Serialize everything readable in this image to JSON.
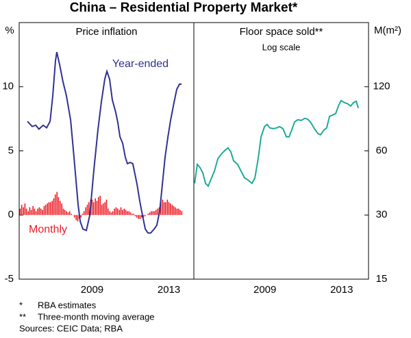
{
  "title": "China – Residential Property Market*",
  "notes": [
    {
      "marker": "*",
      "text": "RBA estimates"
    },
    {
      "marker": "**",
      "text": "Three-month moving average"
    }
  ],
  "sources": "Sources: CEIC Data; RBA",
  "chart_data": [
    {
      "type": "line",
      "title": "Price inflation",
      "ylabel": "%",
      "xlim": [
        2005.7,
        2014.8
      ],
      "xticks": [
        {
          "value": 2009.5,
          "label": "2009"
        },
        {
          "value": 2013.5,
          "label": "2013"
        }
      ],
      "ylim": [
        -5,
        15
      ],
      "yticks": [
        -5,
        0,
        5,
        10
      ],
      "series": [
        {
          "name": "Year-ended",
          "type": "line",
          "color": "#2e3192",
          "x": [
            2006.13,
            2006.38,
            2006.56,
            2006.73,
            2006.95,
            2007.13,
            2007.31,
            2007.45,
            2007.59,
            2007.66,
            2007.81,
            2007.98,
            2008.16,
            2008.38,
            2008.52,
            2008.66,
            2008.77,
            2008.88,
            2009.02,
            2009.2,
            2009.38,
            2009.59,
            2009.8,
            2009.98,
            2010.16,
            2010.27,
            2010.41,
            2010.55,
            2010.73,
            2010.84,
            2010.95,
            2011.09,
            2011.23,
            2011.34,
            2011.48,
            2011.62,
            2011.73,
            2011.84,
            2011.98,
            2012.12,
            2012.27,
            2012.41,
            2012.55,
            2012.73,
            2012.87,
            2013.02,
            2013.16,
            2013.3,
            2013.45,
            2013.59,
            2013.77,
            2013.91,
            2014.05,
            2014.16
          ],
          "values": [
            7.3,
            6.9,
            7.0,
            6.7,
            7.0,
            6.8,
            7.3,
            9.3,
            12.0,
            12.7,
            11.7,
            10.4,
            9.3,
            7.4,
            5.1,
            2.7,
            0.8,
            -0.5,
            -1.1,
            -1.2,
            0,
            3.5,
            6.6,
            8.8,
            10.6,
            11.2,
            10.6,
            9.0,
            8.0,
            7.2,
            6.1,
            5.6,
            4.5,
            4.0,
            4.1,
            4.0,
            3.2,
            2.4,
            1.1,
            0,
            -1.1,
            -1.4,
            -1.4,
            -1.1,
            -0.8,
            0.3,
            2.4,
            4.5,
            6.1,
            7.4,
            8.8,
            9.8,
            10.2,
            10.2
          ]
        },
        {
          "name": "Monthly",
          "type": "bar",
          "color": "#ed1c24",
          "x": [
            2005.75,
            2005.83,
            2005.92,
            2006.0,
            2006.08,
            2006.17,
            2006.25,
            2006.33,
            2006.42,
            2006.5,
            2006.58,
            2006.67,
            2006.75,
            2006.83,
            2006.92,
            2007.0,
            2007.08,
            2007.17,
            2007.25,
            2007.33,
            2007.42,
            2007.5,
            2007.58,
            2007.67,
            2007.75,
            2007.83,
            2007.92,
            2008.0,
            2008.08,
            2008.17,
            2008.25,
            2008.33,
            2008.42,
            2008.5,
            2008.58,
            2008.67,
            2008.75,
            2008.83,
            2008.92,
            2009.0,
            2009.08,
            2009.17,
            2009.25,
            2009.33,
            2009.42,
            2009.5,
            2009.58,
            2009.67,
            2009.75,
            2009.83,
            2009.92,
            2010.0,
            2010.08,
            2010.17,
            2010.25,
            2010.33,
            2010.42,
            2010.5,
            2010.58,
            2010.67,
            2010.75,
            2010.83,
            2010.92,
            2011.0,
            2011.08,
            2011.17,
            2011.25,
            2011.33,
            2011.42,
            2011.5,
            2011.58,
            2011.67,
            2011.75,
            2011.83,
            2011.92,
            2012.0,
            2012.08,
            2012.17,
            2012.25,
            2012.33,
            2012.42,
            2012.5,
            2012.58,
            2012.67,
            2012.75,
            2012.83,
            2012.92,
            2013.0,
            2013.08,
            2013.17,
            2013.25,
            2013.33,
            2013.42,
            2013.5,
            2013.58,
            2013.67,
            2013.75,
            2013.83,
            2013.92,
            2014.0,
            2014.08,
            2014.17
          ],
          "values": [
            0.5,
            0.8,
            0.6,
            0.9,
            0.5,
            0.3,
            0.6,
            0.4,
            0.7,
            0.5,
            0.3,
            0.5,
            0.6,
            0.5,
            0.4,
            0.7,
            0.8,
            0.9,
            1.0,
            1.0,
            1.1,
            1.3,
            1.6,
            1.8,
            1.4,
            1.1,
            0.9,
            0.5,
            0.4,
            0.3,
            0.2,
            0.3,
            0.1,
            0.0,
            -0.2,
            -0.4,
            -0.5,
            -0.3,
            -0.2,
            0.1,
            0.3,
            0.6,
            0.8,
            1.0,
            1.2,
            1.2,
            1.0,
            1.3,
            1.1,
            1.4,
            1.5,
            0.8,
            0.9,
            1.0,
            1.2,
            0.5,
            0.3,
            0.2,
            0.3,
            0.5,
            0.6,
            0.5,
            0.4,
            0.6,
            0.4,
            0.5,
            0.4,
            0.3,
            0.3,
            0.2,
            0.1,
            0.1,
            -0.1,
            -0.2,
            -0.3,
            -0.3,
            -0.2,
            -0.2,
            -0.1,
            0.0,
            0.1,
            0.2,
            0.3,
            0.3,
            0.3,
            0.4,
            0.5,
            0.6,
            1.0,
            1.2,
            1.0,
            1.0,
            1.2,
            1.0,
            0.9,
            0.8,
            0.7,
            0.6,
            0.5,
            0.5,
            0.4,
            0.3
          ]
        }
      ]
    },
    {
      "type": "line",
      "title": "Floor space sold**",
      "subtitle": "Log scale",
      "ylabel": "M(m²)",
      "log_scale": true,
      "xlim": [
        2005.8,
        2014.9
      ],
      "xticks": [
        {
          "value": 2009.5,
          "label": "2009"
        },
        {
          "value": 2013.5,
          "label": "2013"
        }
      ],
      "ylim": [
        15,
        240
      ],
      "yticks": [
        15,
        30,
        60,
        120
      ],
      "series": [
        {
          "type": "line",
          "color": "#1fa99a",
          "x": [
            2005.84,
            2005.98,
            2006.12,
            2006.26,
            2006.41,
            2006.55,
            2006.69,
            2006.87,
            2007.05,
            2007.23,
            2007.41,
            2007.58,
            2007.73,
            2007.87,
            2008.08,
            2008.26,
            2008.44,
            2008.62,
            2008.83,
            2008.98,
            2009.15,
            2009.3,
            2009.48,
            2009.62,
            2009.76,
            2009.94,
            2010.12,
            2010.26,
            2010.44,
            2010.62,
            2010.76,
            2010.9,
            2011.05,
            2011.22,
            2011.4,
            2011.58,
            2011.72,
            2011.87,
            2012.08,
            2012.26,
            2012.4,
            2012.58,
            2012.72,
            2012.87,
            2013.04,
            2013.19,
            2013.33,
            2013.47,
            2013.65,
            2013.83,
            2013.97,
            2014.12,
            2014.26,
            2014.37
          ],
          "values": [
            42.2,
            51.9,
            50.1,
            47.5,
            42.2,
            41.0,
            44.1,
            48.2,
            55.1,
            58.0,
            60.2,
            62.0,
            59.3,
            53.9,
            51.9,
            48.2,
            44.8,
            43.8,
            42.2,
            44.8,
            55.1,
            69.8,
            78.0,
            79.8,
            76.9,
            76.3,
            76.9,
            78.0,
            76.3,
            69.8,
            69.8,
            75.2,
            82.1,
            84.0,
            83.4,
            85.3,
            84.6,
            82.1,
            76.3,
            72.4,
            71.4,
            75.2,
            76.9,
            87.2,
            88.5,
            89.8,
            97.4,
            103.3,
            101.1,
            99.6,
            97.4,
            101.1,
            102.6,
            95.2
          ]
        }
      ]
    }
  ]
}
